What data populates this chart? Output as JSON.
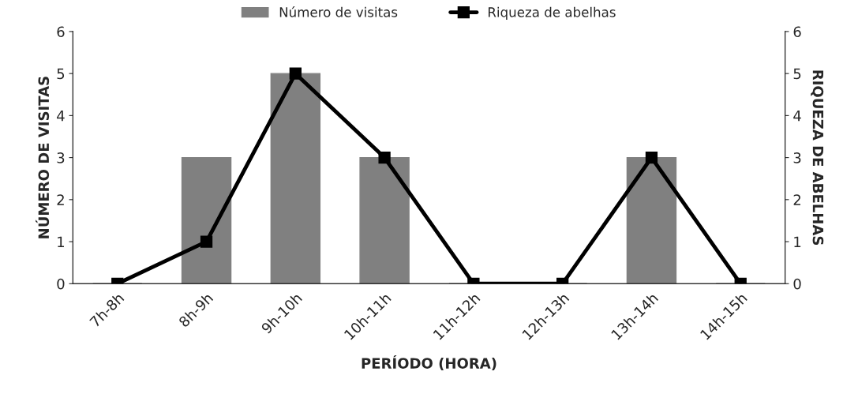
{
  "chart_data": {
    "type": "bar",
    "xlabel": "PERÍODO (HORA)",
    "ylabel": "NÚMERO DE VISITAS",
    "y2label": "RIQUEZA DE ABELHAS",
    "categories": [
      "7h-8h",
      "8h-9h",
      "9h-10h",
      "10h-11h",
      "11h-12h",
      "12h-13h",
      "13h-14h",
      "14h-15h"
    ],
    "series": [
      {
        "name": "Número de visitas",
        "color": "#808080",
        "values": [
          0,
          3,
          5,
          3,
          0,
          0,
          3,
          0
        ]
      },
      {
        "name": "Riqueza de abelhas",
        "type": "line",
        "axis": "y2",
        "color": "#000000",
        "marker": "square",
        "line_style": "solid",
        "values": [
          0,
          1,
          5,
          3,
          0,
          0,
          3,
          0
        ]
      }
    ],
    "ylim": [
      0,
      6
    ],
    "yticks": [
      0,
      1,
      2,
      3,
      4,
      5,
      6
    ],
    "y2lim": [
      0,
      6
    ],
    "y2ticks": [
      0,
      1,
      2,
      3,
      4,
      5,
      6
    ],
    "grid": false,
    "legend": "top"
  }
}
